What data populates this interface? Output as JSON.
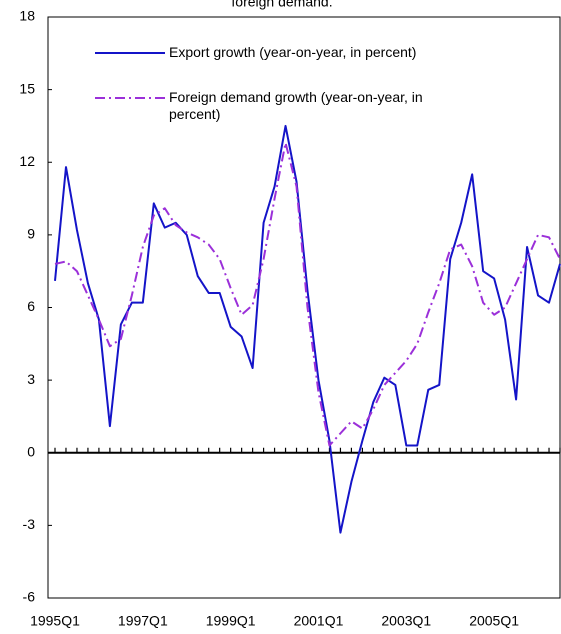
{
  "chart_data": {
    "type": "line",
    "title": "foreign demand.",
    "categories": [
      "1995Q1",
      null,
      null,
      null,
      null,
      null,
      null,
      null,
      "1997Q1",
      null,
      null,
      null,
      null,
      null,
      null,
      null,
      "1999Q1",
      null,
      null,
      null,
      null,
      null,
      null,
      null,
      "2001Q1",
      null,
      null,
      null,
      null,
      null,
      null,
      null,
      "2003Q1",
      null,
      null,
      null,
      null,
      null,
      null,
      null,
      "2005Q1",
      null,
      null,
      null,
      null,
      null,
      null
    ],
    "series": [
      {
        "name": "Export growth (year-on-year, in percent)",
        "color": "#1414c8",
        "dash": "solid",
        "values": [
          7.1,
          11.8,
          9.2,
          7.0,
          5.5,
          1.1,
          5.3,
          6.2,
          6.2,
          10.3,
          9.3,
          9.5,
          9.0,
          7.3,
          6.6,
          6.6,
          5.2,
          4.8,
          3.5,
          9.5,
          11.0,
          13.5,
          11.2,
          6.7,
          3.0,
          0.5,
          -3.3,
          -1.2,
          0.5,
          2.1,
          3.1,
          2.8,
          0.3,
          0.3,
          2.6,
          2.8,
          8.0,
          9.5,
          11.5,
          7.5,
          7.2,
          5.5,
          2.2,
          8.5,
          6.5,
          6.2,
          7.8
        ]
      },
      {
        "name": "Foreign demand growth (year-on-year, in percent)",
        "color": "#9b30d9",
        "dash": "dashdot",
        "values": [
          7.8,
          7.9,
          7.5,
          6.5,
          5.5,
          4.4,
          4.7,
          6.5,
          8.5,
          9.8,
          10.1,
          9.4,
          9.1,
          8.9,
          8.6,
          8.0,
          6.8,
          5.7,
          6.1,
          8.0,
          10.5,
          12.8,
          11.0,
          6.0,
          2.5,
          0.3,
          0.8,
          1.3,
          1.0,
          1.8,
          2.8,
          3.3,
          3.8,
          4.5,
          5.8,
          7.0,
          8.4,
          8.6,
          7.7,
          6.2,
          5.7,
          6.0,
          7.0,
          8.0,
          9.0,
          8.9,
          8.0
        ]
      }
    ],
    "ylim": [
      -6,
      18
    ],
    "yticks": [
      -6,
      -3,
      0,
      3,
      6,
      9,
      12,
      15,
      18
    ],
    "legend": "upper left"
  }
}
